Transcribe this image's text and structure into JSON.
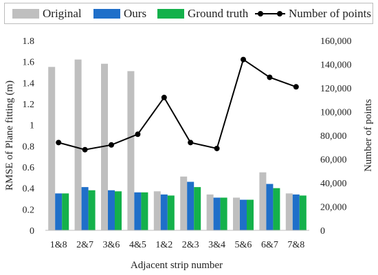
{
  "legend": {
    "original": "Original",
    "ours": "Ours",
    "ground_truth": "Ground truth",
    "points": "Number of points"
  },
  "chart_data": {
    "type": "bar",
    "title": "",
    "xlabel": "Adjacent strip number",
    "ylabel": "RMSE of Plane fitting (m)",
    "y2label": "Number of points",
    "ylim": [
      0,
      1.8
    ],
    "y2lim": [
      0,
      160000
    ],
    "yticks": [
      "0",
      "0.2",
      "0.4",
      "0.6",
      "0.8",
      "1",
      "1.2",
      "1.4",
      "1.6",
      "1.8"
    ],
    "y2ticks": [
      "0",
      "20,000",
      "40,000",
      "60,000",
      "80,000",
      "100,000",
      "120,000",
      "140,000",
      "160,000"
    ],
    "categories": [
      "1&8",
      "2&7",
      "3&6",
      "4&5",
      "1&2",
      "2&3",
      "3&4",
      "5&6",
      "6&7",
      "7&8"
    ],
    "series": [
      {
        "name": "Original",
        "type": "bar",
        "axis": "left",
        "color": "#bfbfbf",
        "values": [
          1.55,
          1.62,
          1.58,
          1.51,
          0.37,
          0.51,
          0.34,
          0.31,
          0.55,
          0.35
        ]
      },
      {
        "name": "Ours",
        "type": "bar",
        "axis": "left",
        "color": "#1f6fc9",
        "values": [
          0.35,
          0.41,
          0.38,
          0.36,
          0.34,
          0.46,
          0.31,
          0.29,
          0.44,
          0.34
        ]
      },
      {
        "name": "Ground truth",
        "type": "bar",
        "axis": "left",
        "color": "#14b14b",
        "values": [
          0.35,
          0.38,
          0.37,
          0.36,
          0.33,
          0.41,
          0.31,
          0.29,
          0.4,
          0.33
        ]
      },
      {
        "name": "Number of points",
        "type": "line",
        "axis": "right",
        "color": "#000000",
        "values": [
          74000,
          68000,
          72000,
          81000,
          112000,
          74000,
          69000,
          144000,
          129000,
          121000
        ]
      }
    ],
    "grid": false,
    "legend_position": "top"
  }
}
